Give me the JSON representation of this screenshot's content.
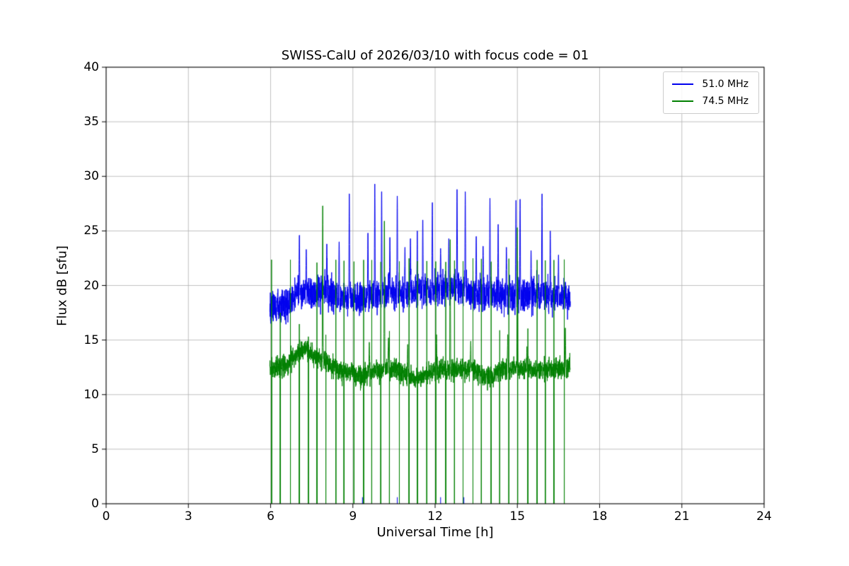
{
  "figure": {
    "background": "#ffffff",
    "frame_color": "#000000"
  },
  "chart_data": {
    "type": "line",
    "title": "SWISS-CalU of 2026/03/10 with focus code = 01",
    "xlabel": "Universal Time [h]",
    "ylabel": "Flux dB [sfu]",
    "xlim": [
      0,
      24
    ],
    "ylim": [
      0,
      40
    ],
    "xticks": [
      0,
      3,
      6,
      9,
      12,
      15,
      18,
      21,
      24
    ],
    "yticks": [
      0,
      5,
      10,
      15,
      20,
      25,
      30,
      35,
      40
    ],
    "grid": true,
    "grid_color": "#b0b0b0",
    "legend": {
      "position": "upper right",
      "entries": [
        "51.0 MHz",
        "74.5 MHz"
      ]
    },
    "series": [
      {
        "name": "51.0 MHz",
        "color": "#0000ee",
        "t_range": [
          5.97,
          16.93
        ],
        "noise_amp": 1.25,
        "baseline": [
          [
            6.0,
            17.9
          ],
          [
            6.5,
            18.1
          ],
          [
            7.0,
            19.4
          ],
          [
            7.5,
            19.2
          ],
          [
            8.0,
            19.5
          ],
          [
            8.5,
            18.9
          ],
          [
            9.0,
            18.8
          ],
          [
            9.5,
            19.0
          ],
          [
            10.0,
            19.1
          ],
          [
            10.5,
            19.3
          ],
          [
            11.0,
            19.4
          ],
          [
            11.5,
            19.6
          ],
          [
            12.0,
            19.7
          ],
          [
            12.5,
            19.9
          ],
          [
            13.0,
            19.7
          ],
          [
            13.5,
            19.3
          ],
          [
            14.0,
            19.2
          ],
          [
            14.5,
            19.1
          ],
          [
            15.0,
            19.2
          ],
          [
            15.5,
            19.0
          ],
          [
            16.0,
            19.2
          ],
          [
            16.5,
            19.0
          ],
          [
            16.93,
            18.8
          ]
        ],
        "spikes": [
          [
            7.05,
            24.6
          ],
          [
            7.3,
            23.3
          ],
          [
            8.05,
            23.8
          ],
          [
            8.5,
            24.0
          ],
          [
            8.87,
            28.4
          ],
          [
            9.55,
            24.8
          ],
          [
            9.8,
            29.3
          ],
          [
            10.05,
            28.6
          ],
          [
            10.35,
            24.4
          ],
          [
            10.62,
            28.2
          ],
          [
            10.9,
            23.5
          ],
          [
            11.1,
            24.3
          ],
          [
            11.35,
            25.0
          ],
          [
            11.55,
            26.0
          ],
          [
            11.9,
            27.6
          ],
          [
            12.2,
            23.4
          ],
          [
            12.5,
            24.3
          ],
          [
            12.8,
            28.8
          ],
          [
            13.1,
            28.6
          ],
          [
            13.5,
            24.5
          ],
          [
            13.75,
            23.6
          ],
          [
            14.0,
            28.0
          ],
          [
            14.3,
            25.6
          ],
          [
            14.6,
            23.5
          ],
          [
            14.95,
            27.8
          ],
          [
            15.1,
            27.9
          ],
          [
            15.5,
            23.2
          ],
          [
            15.9,
            28.4
          ],
          [
            16.2,
            25.0
          ],
          [
            16.5,
            22.8
          ]
        ],
        "floor_ticks": [
          9.35,
          10.62,
          12.2,
          13.05
        ]
      },
      {
        "name": "74.5 MHz",
        "color": "#008000",
        "t_range": [
          5.97,
          16.93
        ],
        "noise_amp": 0.8,
        "baseline": [
          [
            6.0,
            12.4
          ],
          [
            6.5,
            12.6
          ],
          [
            7.0,
            13.8
          ],
          [
            7.3,
            14.1
          ],
          [
            7.6,
            13.6
          ],
          [
            8.0,
            13.0
          ],
          [
            8.5,
            12.3
          ],
          [
            9.0,
            11.8
          ],
          [
            9.3,
            11.6
          ],
          [
            9.6,
            12.0
          ],
          [
            10.0,
            12.2
          ],
          [
            10.5,
            12.4
          ],
          [
            11.0,
            11.7
          ],
          [
            11.3,
            11.4
          ],
          [
            11.6,
            11.7
          ],
          [
            12.0,
            12.2
          ],
          [
            12.5,
            12.3
          ],
          [
            13.0,
            12.4
          ],
          [
            13.5,
            12.2
          ],
          [
            13.8,
            11.6
          ],
          [
            14.1,
            11.7
          ],
          [
            14.5,
            12.4
          ],
          [
            15.0,
            12.5
          ],
          [
            15.5,
            12.3
          ],
          [
            16.0,
            12.3
          ],
          [
            16.5,
            12.4
          ],
          [
            16.93,
            12.5
          ]
        ],
        "spikes": [
          [
            7.9,
            27.3
          ],
          [
            9.6,
            14.8
          ],
          [
            10.15,
            25.9
          ],
          [
            10.3,
            15.2
          ],
          [
            11.0,
            14.6
          ],
          [
            12.05,
            15.5
          ],
          [
            12.55,
            24.2
          ],
          [
            13.3,
            14.9
          ],
          [
            14.65,
            15.5
          ],
          [
            15.0,
            25.3
          ],
          [
            15.35,
            14.4
          ],
          [
            16.75,
            16.1
          ]
        ],
        "cal_pulses": {
          "start": 6.03,
          "end": 16.9,
          "interval": 0.3333,
          "top_typical": 22.3,
          "top_low_min": 15.0,
          "top_low_max": 18.0,
          "low_fraction": 0.25,
          "bottom": 0
        }
      }
    ]
  }
}
